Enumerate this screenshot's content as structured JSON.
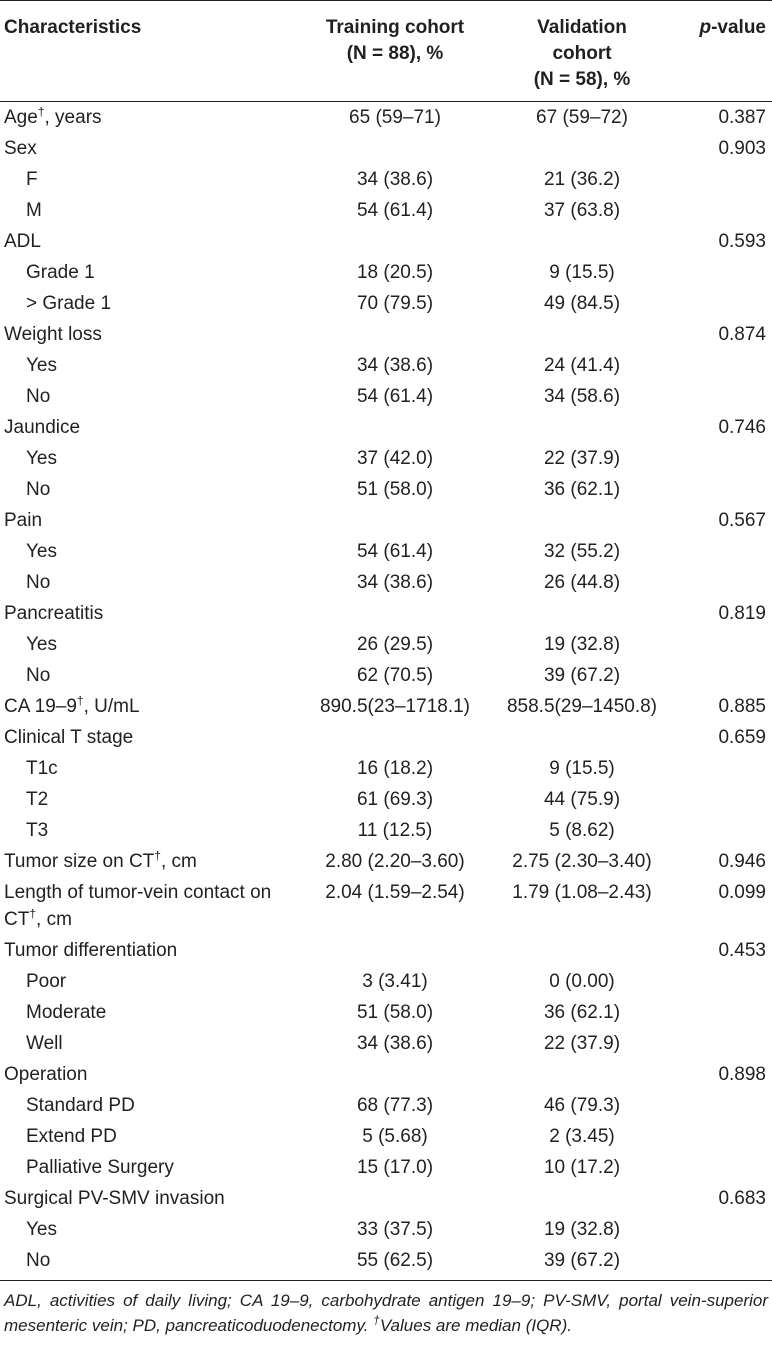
{
  "table": {
    "headers": {
      "characteristics": "Characteristics",
      "training_line1": "Training cohort",
      "training_line2": "(N = 88), %",
      "validation_line1": "Validation",
      "validation_line2": "cohort",
      "validation_line3": "(N = 58), %",
      "p_italic": "p",
      "p_rest": "-value"
    },
    "rows": [
      {
        "label": "Age",
        "sup": "†",
        "suffix": ", years",
        "training": "65 (59–71)",
        "validation": "67 (59–72)",
        "p": "0.387",
        "indent": false
      },
      {
        "label": "Sex",
        "training": "",
        "validation": "",
        "p": "0.903",
        "indent": false
      },
      {
        "label": "F",
        "training": "34 (38.6)",
        "validation": "21 (36.2)",
        "p": "",
        "indent": true
      },
      {
        "label": "M",
        "training": "54 (61.4)",
        "validation": "37 (63.8)",
        "p": "",
        "indent": true
      },
      {
        "label": "ADL",
        "training": "",
        "validation": "",
        "p": "0.593",
        "indent": false
      },
      {
        "label": "Grade 1",
        "training": "18 (20.5)",
        "validation": "9 (15.5)",
        "p": "",
        "indent": true
      },
      {
        "label": "> Grade 1",
        "training": "70 (79.5)",
        "validation": "49 (84.5)",
        "p": "",
        "indent": true
      },
      {
        "label": "Weight loss",
        "training": "",
        "validation": "",
        "p": "0.874",
        "indent": false
      },
      {
        "label": "Yes",
        "training": "34 (38.6)",
        "validation": "24 (41.4)",
        "p": "",
        "indent": true
      },
      {
        "label": "No",
        "training": "54 (61.4)",
        "validation": "34 (58.6)",
        "p": "",
        "indent": true
      },
      {
        "label": "Jaundice",
        "training": "",
        "validation": "",
        "p": "0.746",
        "indent": false
      },
      {
        "label": "Yes",
        "training": "37 (42.0)",
        "validation": "22 (37.9)",
        "p": "",
        "indent": true
      },
      {
        "label": "No",
        "training": "51 (58.0)",
        "validation": "36 (62.1)",
        "p": "",
        "indent": true
      },
      {
        "label": "Pain",
        "training": "",
        "validation": "",
        "p": "0.567",
        "indent": false
      },
      {
        "label": "Yes",
        "training": "54 (61.4)",
        "validation": "32 (55.2)",
        "p": "",
        "indent": true
      },
      {
        "label": "No",
        "training": "34 (38.6)",
        "validation": "26 (44.8)",
        "p": "",
        "indent": true
      },
      {
        "label": "Pancreatitis",
        "training": "",
        "validation": "",
        "p": "0.819",
        "indent": false
      },
      {
        "label": "Yes",
        "training": "26 (29.5)",
        "validation": "19 (32.8)",
        "p": "",
        "indent": true
      },
      {
        "label": "No",
        "training": "62 (70.5)",
        "validation": "39 (67.2)",
        "p": "",
        "indent": true
      },
      {
        "label": "CA 19–9",
        "sup": "†",
        "suffix": ", U/mL",
        "training": "890.5(23–1718.1)",
        "validation": "858.5(29–1450.8)",
        "p": "0.885",
        "indent": false
      },
      {
        "label": "Clinical T stage",
        "training": "",
        "validation": "",
        "p": "0.659",
        "indent": false
      },
      {
        "label": "T1c",
        "training": "16 (18.2)",
        "validation": "9 (15.5)",
        "p": "",
        "indent": true
      },
      {
        "label": "T2",
        "training": "61 (69.3)",
        "validation": "44 (75.9)",
        "p": "",
        "indent": true
      },
      {
        "label": "T3",
        "training": "11 (12.5)",
        "validation": "5 (8.62)",
        "p": "",
        "indent": true
      },
      {
        "label": "Tumor size on CT",
        "sup": "†",
        "suffix": ", cm",
        "training": "2.80 (2.20–3.60)",
        "validation": "2.75 (2.30–3.40)",
        "p": "0.946",
        "indent": false
      },
      {
        "label": "Length of tumor-vein contact on CT",
        "sup": "†",
        "suffix": ", cm",
        "training": "2.04 (1.59–2.54)",
        "validation": "1.79 (1.08–2.43)",
        "p": "0.099",
        "indent": false
      },
      {
        "label": "Tumor differentiation",
        "training": "",
        "validation": "",
        "p": "0.453",
        "indent": false
      },
      {
        "label": "Poor",
        "training": "3 (3.41)",
        "validation": "0 (0.00)",
        "p": "",
        "indent": true
      },
      {
        "label": "Moderate",
        "training": "51 (58.0)",
        "validation": "36 (62.1)",
        "p": "",
        "indent": true
      },
      {
        "label": "Well",
        "training": "34 (38.6)",
        "validation": "22 (37.9)",
        "p": "",
        "indent": true
      },
      {
        "label": "Operation",
        "training": "",
        "validation": "",
        "p": "0.898",
        "indent": false
      },
      {
        "label": "Standard PD",
        "training": "68 (77.3)",
        "validation": "46 (79.3)",
        "p": "",
        "indent": true
      },
      {
        "label": "Extend PD",
        "training": "5 (5.68)",
        "validation": "2 (3.45)",
        "p": "",
        "indent": true
      },
      {
        "label": "Palliative Surgery",
        "training": "15 (17.0)",
        "validation": "10 (17.2)",
        "p": "",
        "indent": true
      },
      {
        "label": "Surgical PV-SMV invasion",
        "training": "",
        "validation": "",
        "p": "0.683",
        "indent": false
      },
      {
        "label": "Yes",
        "training": "33 (37.5)",
        "validation": "19 (32.8)",
        "p": "",
        "indent": true
      },
      {
        "label": "No",
        "training": "55 (62.5)",
        "validation": "39 (67.2)",
        "p": "",
        "indent": true
      }
    ]
  },
  "footnote": {
    "abbreviations": "ADL, activities of daily living; CA 19–9, carbohydrate antigen 19–9; PV-SMV, portal vein-superior mesenteric vein; PD, pancreaticoduodenectomy. ",
    "dagger": "†",
    "dagger_note": "Values are median (IQR)."
  }
}
